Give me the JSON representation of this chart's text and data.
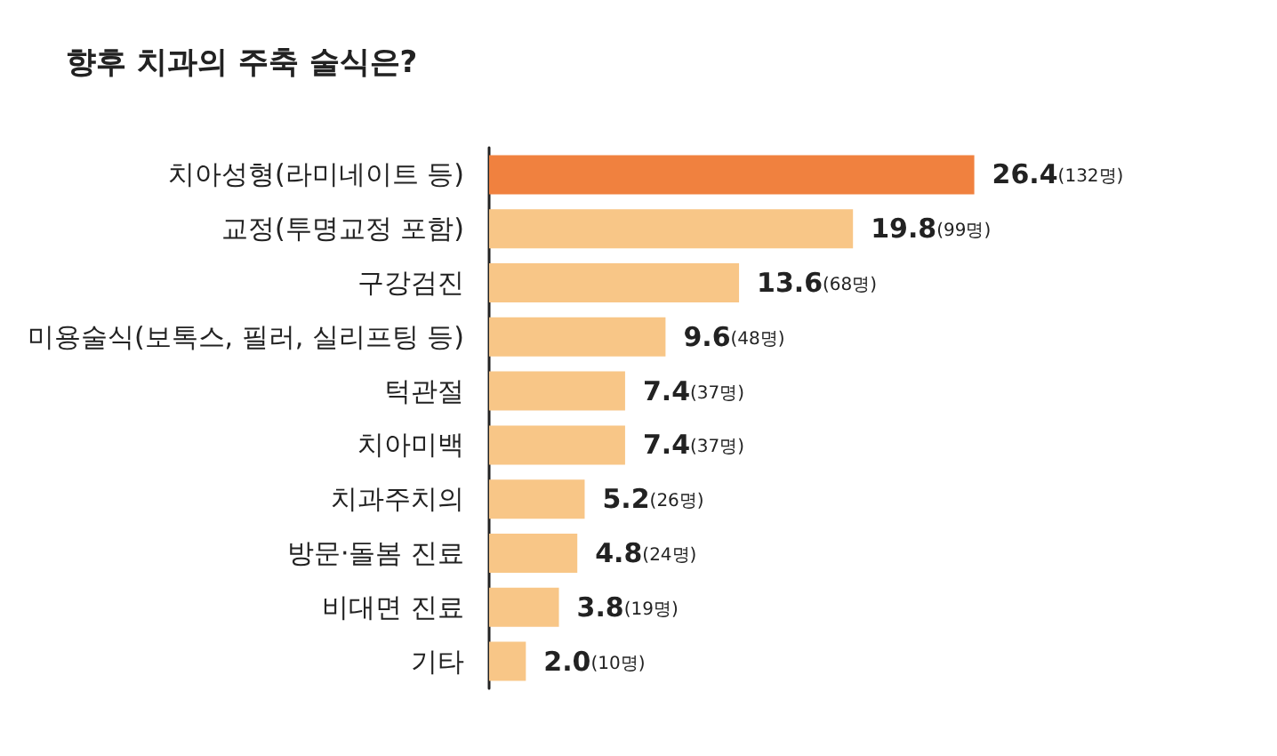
{
  "chart_data": {
    "type": "bar",
    "orientation": "horizontal",
    "title": "향후 치과의 주축 술식은?",
    "categories": [
      "치아성형(라미네이트 등)",
      "교정(투명교정 포함)",
      "구강검진",
      "미용술식(보톡스, 필러, 실리프팅 등)",
      "턱관절",
      "치아미백",
      "치과주치의",
      "방문·돌봄 진료",
      "비대면 진료",
      "기타"
    ],
    "values": [
      26.4,
      19.8,
      13.6,
      9.6,
      7.4,
      7.4,
      5.2,
      4.8,
      3.8,
      2.0
    ],
    "colors": [
      "#f0813f",
      "#f8c687",
      "#f8c687",
      "#f8c687",
      "#f8c687",
      "#f8c687",
      "#f8c687",
      "#f8c687",
      "#f8c687",
      "#f8c687"
    ],
    "value_labels": [
      "26.4(132명)",
      "19.8(99명)",
      "13.6(68명)",
      "9.6(48명)",
      "7.4(37명)",
      "7.4(37명)",
      "5.2(26명)",
      "4.8(24명)",
      "3.8(19명)",
      "2.0(10명)"
    ]
  }
}
